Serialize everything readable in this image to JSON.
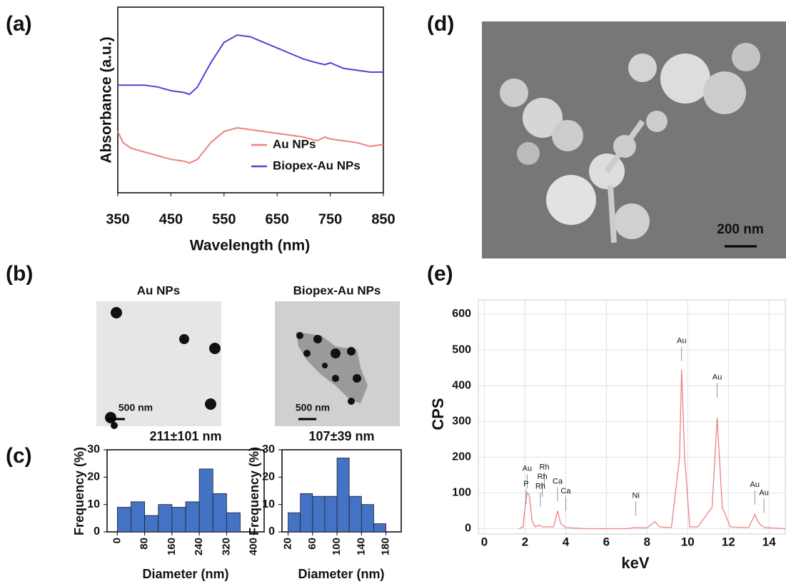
{
  "panel_labels": [
    "(a)",
    "(b)",
    "(c)",
    "(d)",
    "(e)"
  ],
  "images": [
    {
      "title": "Au NPs",
      "scale_bar": "500 nm"
    },
    {
      "title": "Biopex-Au NPs",
      "scale_bar": "500 nm"
    },
    {
      "scale_bar": "200 nm"
    }
  ],
  "chart_data": [
    {
      "type": "line",
      "x_label": "Wavelength (nm)",
      "y_label": "Absorbance (a.u.)",
      "x": [
        350,
        360,
        375,
        400,
        425,
        450,
        475,
        485,
        500,
        525,
        550,
        575,
        600,
        625,
        650,
        675,
        700,
        725,
        740,
        750,
        775,
        800,
        825,
        850
      ],
      "series": [
        {
          "name": "Au NPs",
          "color": "#ee8080",
          "values": [
            0.33,
            0.27,
            0.24,
            0.22,
            0.2,
            0.18,
            0.17,
            0.16,
            0.18,
            0.27,
            0.33,
            0.35,
            0.34,
            0.33,
            0.32,
            0.31,
            0.3,
            0.28,
            0.3,
            0.29,
            0.28,
            0.27,
            0.25,
            0.26
          ]
        },
        {
          "name": "Biopex-Au NPs",
          "color": "#4b45d8",
          "values": [
            0.58,
            0.58,
            0.58,
            0.58,
            0.57,
            0.55,
            0.54,
            0.53,
            0.57,
            0.7,
            0.81,
            0.85,
            0.84,
            0.81,
            0.78,
            0.75,
            0.72,
            0.7,
            0.69,
            0.7,
            0.67,
            0.66,
            0.65,
            0.65
          ]
        }
      ],
      "xlim": [
        350,
        850
      ],
      "xticks": [
        350,
        450,
        550,
        650,
        750,
        850
      ],
      "ylim": [
        0,
        1
      ],
      "legend": "lower right"
    },
    {
      "type": "histogram",
      "title": "211±101 nm",
      "x_label": "Diameter (nm)",
      "y_label": "Frequency (%)",
      "bins": [
        0,
        40,
        80,
        120,
        160,
        200,
        240,
        280,
        320,
        360
      ],
      "values": [
        9,
        11,
        6,
        10,
        9,
        11,
        23,
        14,
        7
      ],
      "color": "#4472c4",
      "xlim": [
        -30,
        430
      ],
      "xticks": [
        0,
        80,
        160,
        240,
        320,
        400
      ],
      "ylim": [
        0,
        30
      ],
      "yticks": [
        0,
        10,
        20,
        30
      ]
    },
    {
      "type": "histogram",
      "title": "107±39 nm",
      "x_label": "Diameter (nm)",
      "y_label": "Frequency (%)",
      "bins": [
        20,
        40,
        60,
        80,
        100,
        120,
        140,
        160,
        180
      ],
      "values": [
        7,
        14,
        13,
        13,
        27,
        13,
        10,
        3
      ],
      "color": "#4472c4",
      "xlim": [
        10,
        205
      ],
      "xticks": [
        20,
        60,
        100,
        140,
        180
      ],
      "ylim": [
        0,
        30
      ],
      "yticks": [
        0,
        10,
        20,
        30
      ]
    },
    {
      "type": "line",
      "x_label": "keV",
      "y_label": "CPS",
      "color": "#ee8080",
      "x": [
        1.7,
        1.9,
        2.0,
        2.1,
        2.2,
        2.35,
        2.5,
        2.7,
        2.85,
        3.4,
        3.6,
        3.75,
        4.0,
        5.0,
        7.0,
        7.4,
        8.0,
        8.4,
        8.6,
        9.2,
        9.6,
        9.7,
        9.85,
        10.1,
        10.5,
        11.2,
        11.45,
        11.7,
        12.1,
        13.0,
        13.3,
        13.45,
        13.6,
        13.8,
        14.8
      ],
      "values": [
        0,
        5,
        60,
        100,
        95,
        20,
        5,
        10,
        5,
        5,
        50,
        15,
        3,
        0,
        0,
        3,
        2,
        20,
        5,
        3,
        200,
        445,
        200,
        5,
        5,
        60,
        310,
        60,
        5,
        3,
        40,
        20,
        10,
        3,
        0
      ],
      "xlim": [
        -0.3,
        14.8
      ],
      "xticks": [
        0,
        2,
        4,
        6,
        8,
        10,
        12,
        14
      ],
      "ylim": [
        -15,
        640
      ],
      "yticks": [
        0,
        100,
        200,
        300,
        400,
        500,
        600
      ],
      "grid": true,
      "annotations": [
        {
          "text": "Au",
          "x": 2.1,
          "y": 168
        },
        {
          "text": "P",
          "x": 2.05,
          "y": 125
        },
        {
          "text": "Rh",
          "x": 2.95,
          "y": 172
        },
        {
          "text": "Rh",
          "x": 2.85,
          "y": 145
        },
        {
          "text": "Rh",
          "x": 2.75,
          "y": 118
        },
        {
          "text": "Ca",
          "x": 3.6,
          "y": 132
        },
        {
          "text": "Ca",
          "x": 4.0,
          "y": 105
        },
        {
          "text": "Ni",
          "x": 7.45,
          "y": 92
        },
        {
          "text": "Au",
          "x": 9.7,
          "y": 525
        },
        {
          "text": "Au",
          "x": 11.45,
          "y": 423
        },
        {
          "text": "Au",
          "x": 13.3,
          "y": 123
        },
        {
          "text": "Au",
          "x": 13.75,
          "y": 100
        }
      ]
    }
  ]
}
